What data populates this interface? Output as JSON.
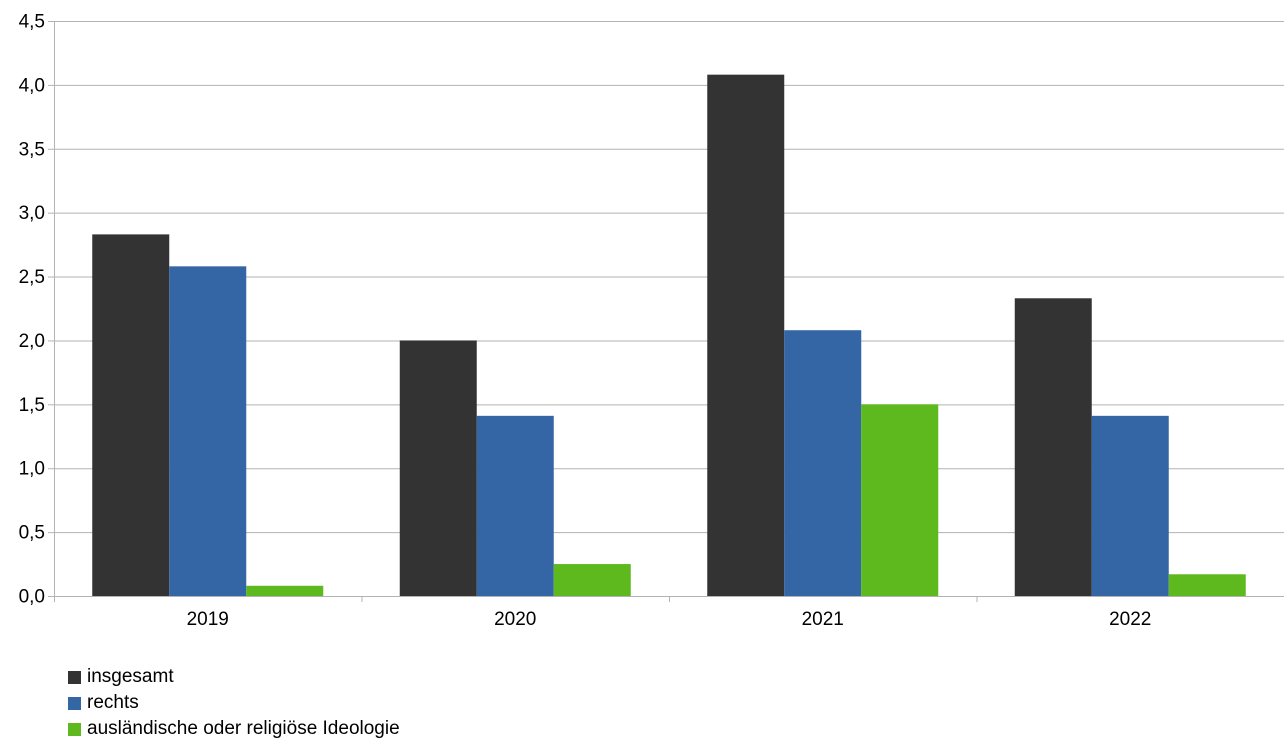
{
  "chart_data": {
    "type": "bar",
    "title": "",
    "xlabel": "",
    "ylabel": "",
    "categories": [
      "2019",
      "2020",
      "2021",
      "2022"
    ],
    "series": [
      {
        "name": "insgesamt",
        "color": "#333333",
        "values": [
          2.83,
          2.0,
          4.08,
          2.33
        ]
      },
      {
        "name": "rechts",
        "color": "#3465a4",
        "values": [
          2.58,
          1.41,
          2.08,
          1.41
        ]
      },
      {
        "name": "ausländische oder religiöse Ideologie",
        "color": "#5eb91e",
        "values": [
          0.08,
          0.25,
          1.5,
          0.17
        ]
      }
    ],
    "ylim": [
      0,
      4.5
    ],
    "yticks": [
      0,
      0.5,
      1,
      1.5,
      2,
      2.5,
      3,
      3.5,
      4,
      4.5
    ],
    "ytick_labels": [
      "0,0",
      "0,5",
      "1,0",
      "1,5",
      "2,0",
      "2,5",
      "3,0",
      "3,5",
      "4,0",
      "4,5"
    ],
    "grid": true,
    "legend_position": "bottom-left"
  }
}
